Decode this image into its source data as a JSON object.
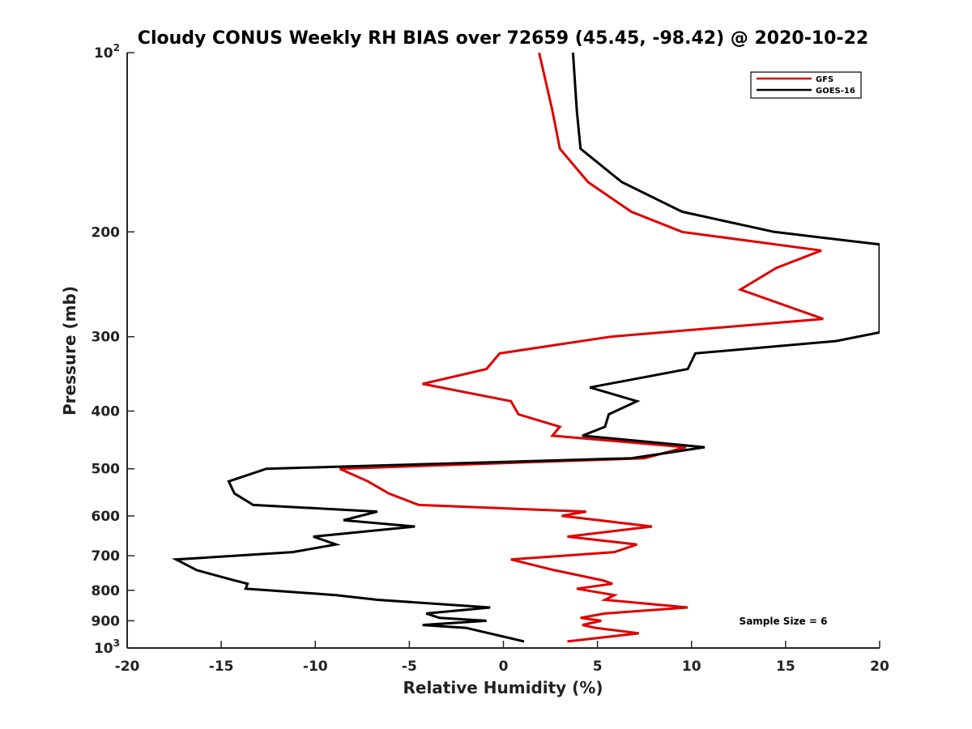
{
  "chart_data": {
    "type": "line",
    "title": "Cloudy CONUS Weekly RH BIAS over 72659 (45.45, -98.42) @ 2020-10-22",
    "xlabel": "Relative Humidity (%)",
    "ylabel": "Pressure (mb)",
    "xlim": [
      -20,
      20
    ],
    "ylim": [
      100,
      1000
    ],
    "y_scale": "log",
    "y_reversed": true,
    "x_ticks": [
      -20,
      -15,
      -10,
      -5,
      0,
      5,
      10,
      15,
      20
    ],
    "x_tick_labels": [
      "-20",
      "-15",
      "-10",
      "-5",
      "0",
      "5",
      "10",
      "15",
      "20"
    ],
    "y_ticks": [
      {
        "value": 100,
        "base": "10",
        "exp": "2"
      },
      {
        "value": 200,
        "label": "200"
      },
      {
        "value": 300,
        "label": "300"
      },
      {
        "value": 400,
        "label": "400"
      },
      {
        "value": 500,
        "label": "500"
      },
      {
        "value": 600,
        "label": "600"
      },
      {
        "value": 700,
        "label": "700"
      },
      {
        "value": 800,
        "label": "800"
      },
      {
        "value": 900,
        "label": "900"
      },
      {
        "value": 1000,
        "base": "10",
        "exp": "3"
      }
    ],
    "grid": false,
    "legend_position": "top-right",
    "annotation": "Sample Size = 6",
    "series": [
      {
        "name": "GFS",
        "color": "#e00000",
        "points": [
          [
            1.9,
            100
          ],
          [
            2.6,
            125
          ],
          [
            3.0,
            145
          ],
          [
            4.5,
            165
          ],
          [
            6.8,
            185
          ],
          [
            9.5,
            200
          ],
          [
            16.9,
            215
          ],
          [
            14.5,
            230
          ],
          [
            12.6,
            250
          ],
          [
            17.0,
            280
          ],
          [
            5.7,
            300
          ],
          [
            -0.2,
            320
          ],
          [
            -0.9,
            340
          ],
          [
            -4.3,
            360
          ],
          [
            0.4,
            385
          ],
          [
            0.8,
            405
          ],
          [
            3.0,
            425
          ],
          [
            2.6,
            440
          ],
          [
            9.7,
            460
          ],
          [
            7.5,
            480
          ],
          [
            -8.7,
            500
          ],
          [
            -7.2,
            525
          ],
          [
            -6.1,
            550
          ],
          [
            -4.5,
            575
          ],
          [
            4.4,
            590
          ],
          [
            3.1,
            600
          ],
          [
            7.9,
            625
          ],
          [
            3.4,
            650
          ],
          [
            7.1,
            670
          ],
          [
            5.9,
            690
          ],
          [
            0.4,
            710
          ],
          [
            2.7,
            740
          ],
          [
            5.3,
            770
          ],
          [
            5.8,
            780
          ],
          [
            3.9,
            795
          ],
          [
            5.9,
            815
          ],
          [
            5.4,
            830
          ],
          [
            9.8,
            855
          ],
          [
            5.4,
            875
          ],
          [
            4.1,
            890
          ],
          [
            5.2,
            900
          ],
          [
            4.2,
            915
          ],
          [
            4.9,
            925
          ],
          [
            7.2,
            945
          ],
          [
            3.4,
            975
          ]
        ]
      },
      {
        "name": "GOES-16",
        "color": "#000000",
        "points": [
          [
            3.7,
            100
          ],
          [
            3.9,
            125
          ],
          [
            4.1,
            145
          ],
          [
            6.3,
            165
          ],
          [
            9.5,
            185
          ],
          [
            14.4,
            200
          ],
          [
            20.0,
            210
          ],
          [
            20.0,
            295
          ],
          [
            17.7,
            305
          ],
          [
            10.2,
            320
          ],
          [
            9.8,
            340
          ],
          [
            4.6,
            365
          ],
          [
            7.1,
            385
          ],
          [
            5.6,
            405
          ],
          [
            5.4,
            425
          ],
          [
            4.2,
            440
          ],
          [
            10.7,
            460
          ],
          [
            6.8,
            480
          ],
          [
            -12.6,
            500
          ],
          [
            -14.6,
            525
          ],
          [
            -14.3,
            550
          ],
          [
            -13.3,
            575
          ],
          [
            -6.7,
            590
          ],
          [
            -8.5,
            610
          ],
          [
            -4.7,
            625
          ],
          [
            -10.1,
            650
          ],
          [
            -8.9,
            670
          ],
          [
            -11.2,
            690
          ],
          [
            -17.4,
            710
          ],
          [
            -16.3,
            740
          ],
          [
            -14.3,
            770
          ],
          [
            -13.6,
            780
          ],
          [
            -13.7,
            795
          ],
          [
            -8.9,
            815
          ],
          [
            -6.7,
            830
          ],
          [
            -0.7,
            855
          ],
          [
            -4.1,
            875
          ],
          [
            -3.4,
            890
          ],
          [
            -0.9,
            900
          ],
          [
            -4.3,
            915
          ],
          [
            -2.0,
            925
          ],
          [
            1.1,
            975
          ]
        ]
      }
    ]
  }
}
